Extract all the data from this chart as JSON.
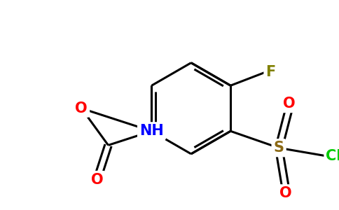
{
  "background_color": "#ffffff",
  "bond_color": "#000000",
  "atom_colors": {
    "O": "#ff0000",
    "N": "#0000ff",
    "F": "#808000",
    "S": "#8b6914",
    "Cl": "#00cc00"
  },
  "figsize": [
    4.84,
    3.0
  ],
  "dpi": 100
}
